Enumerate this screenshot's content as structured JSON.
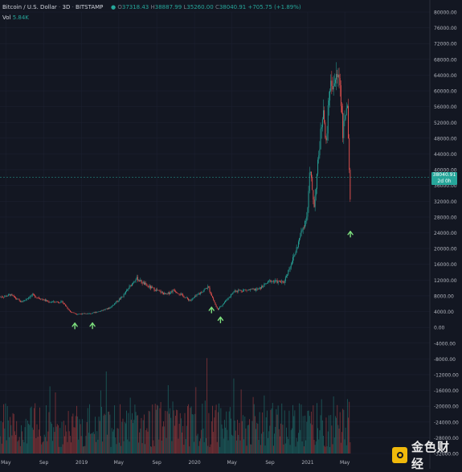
{
  "header": {
    "symbol": "Bitcoin / U.S. Dollar",
    "interval": "3D",
    "exchange": "BITSTAMP",
    "o_label": "O",
    "o": "37318.43",
    "h_label": "H",
    "h": "38887.99",
    "l_label": "L",
    "l": "35260.00",
    "c_label": "C",
    "c": "38040.91",
    "change": "+705.75 (+1.89%)"
  },
  "volume_label": {
    "name": "Vol",
    "value": "5.84K"
  },
  "price_tag": {
    "price": "38040.91",
    "countdown": "2d 0h"
  },
  "watermark": {
    "text": "金色财经"
  },
  "colors": {
    "background": "#131722",
    "up": "#26a69a",
    "down": "#ef5350",
    "arrow": "#7ee07e",
    "axis_text": "#b2b5be"
  },
  "chart_data": {
    "type": "candlestick",
    "title": "Bitcoin / U.S. Dollar",
    "y_axis_ticks": [
      "80000.00",
      "76000.00",
      "72000.00",
      "68000.00",
      "64000.00",
      "60000.00",
      "56000.00",
      "52000.00",
      "48000.00",
      "44000.00",
      "40000.00",
      "36000.00",
      "32000.00",
      "28000.00",
      "24000.00",
      "20000.00",
      "16000.00",
      "12000.00",
      "8000.00",
      "4000.00",
      "0.00",
      "-4000.00",
      "-8000.00",
      "-12000.00",
      "-16000.00",
      "-20000.00",
      "-24000.00",
      "-28000.00",
      "-32000.00"
    ],
    "ylim": [
      -32000,
      80000
    ],
    "x_axis_ticks": [
      "May",
      "Sep",
      "2019",
      "May",
      "Sep",
      "2020",
      "May",
      "Sep",
      "2021",
      "May"
    ],
    "price_path": [
      {
        "x": "2018-04-25",
        "y": 7800
      },
      {
        "x": "2018-05-15",
        "y": 8300
      },
      {
        "x": "2018-06-20",
        "y": 6400
      },
      {
        "x": "2018-07-25",
        "y": 8200
      },
      {
        "x": "2018-09-15",
        "y": 6500
      },
      {
        "x": "2018-11-01",
        "y": 6400
      },
      {
        "x": "2018-11-25",
        "y": 4000
      },
      {
        "x": "2018-12-15",
        "y": 3400
      },
      {
        "x": "2019-02-01",
        "y": 3500
      },
      {
        "x": "2019-04-01",
        "y": 4900
      },
      {
        "x": "2019-05-15",
        "y": 8000
      },
      {
        "x": "2019-06-26",
        "y": 12500
      },
      {
        "x": "2019-08-01",
        "y": 10500
      },
      {
        "x": "2019-10-01",
        "y": 8300
      },
      {
        "x": "2019-10-26",
        "y": 9500
      },
      {
        "x": "2019-12-18",
        "y": 6800
      },
      {
        "x": "2020-02-14",
        "y": 10300
      },
      {
        "x": "2020-03-12",
        "y": 5000
      },
      {
        "x": "2020-03-16",
        "y": 4500
      },
      {
        "x": "2020-05-10",
        "y": 9300
      },
      {
        "x": "2020-07-25",
        "y": 9600
      },
      {
        "x": "2020-09-01",
        "y": 11800
      },
      {
        "x": "2020-10-15",
        "y": 11400
      },
      {
        "x": "2020-11-20",
        "y": 18500
      },
      {
        "x": "2020-12-31",
        "y": 29000
      },
      {
        "x": "2021-01-08",
        "y": 40000
      },
      {
        "x": "2021-01-22",
        "y": 31000
      },
      {
        "x": "2021-02-21",
        "y": 57000
      },
      {
        "x": "2021-02-28",
        "y": 45000
      },
      {
        "x": "2021-03-13",
        "y": 61000
      },
      {
        "x": "2021-04-14",
        "y": 64000
      },
      {
        "x": "2021-04-25",
        "y": 49000
      },
      {
        "x": "2021-05-08",
        "y": 58000
      },
      {
        "x": "2021-05-19",
        "y": 30000
      },
      {
        "x": "2021-05-20",
        "y": 38040
      }
    ],
    "volume_range": [
      0,
      20000
    ],
    "buy_markers": [
      {
        "x": "2018-12-10"
      },
      {
        "x": "2019-02-05"
      },
      {
        "x": "2020-02-25"
      },
      {
        "x": "2020-03-25"
      },
      {
        "x": "2021-05-19"
      }
    ]
  }
}
